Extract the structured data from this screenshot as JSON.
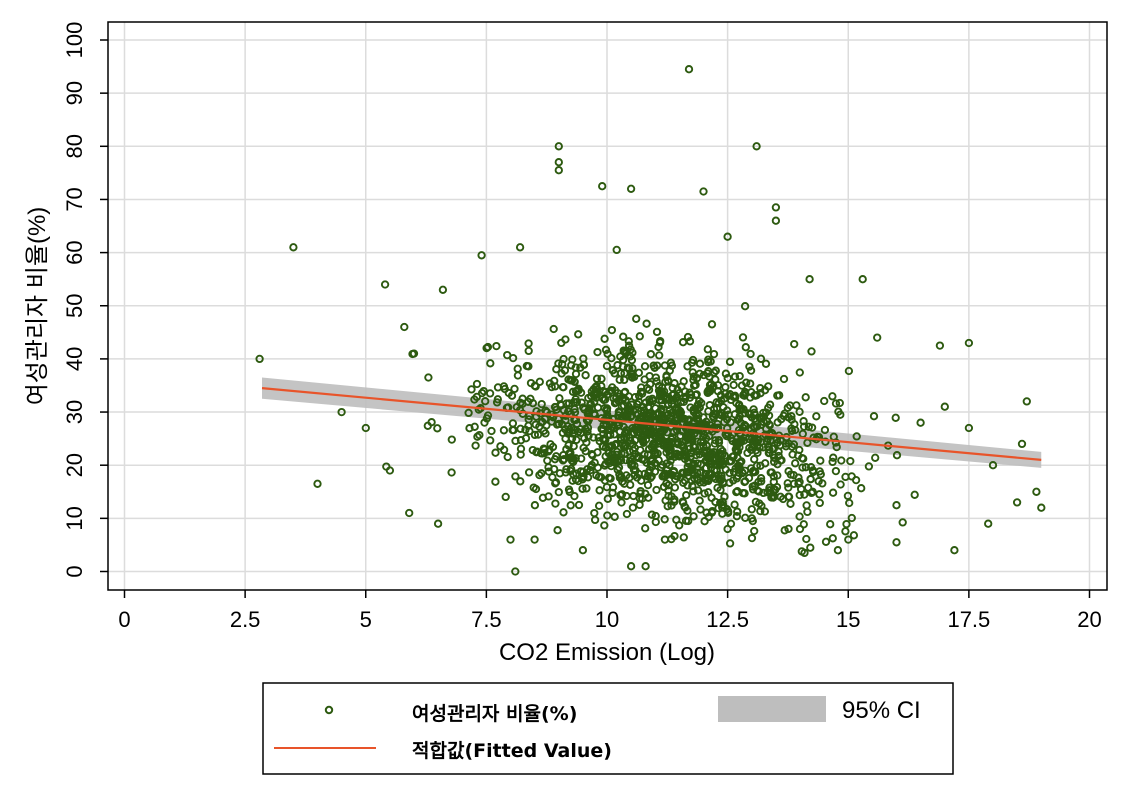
{
  "chart_data": {
    "type": "scatter",
    "xlabel": "CO2 Emission (Log)",
    "ylabel": "여성관리자 비율(%)",
    "xlim": [
      0,
      20
    ],
    "ylim": [
      0,
      100
    ],
    "x_ticks": [
      0,
      2.5,
      5,
      7.5,
      10,
      12.5,
      15,
      17.5,
      20
    ],
    "x_tick_labels": [
      "0",
      "2.5",
      "5",
      "7.5",
      "10",
      "12.5",
      "15",
      "17.5",
      "20"
    ],
    "y_ticks": [
      0,
      10,
      20,
      30,
      40,
      50,
      60,
      70,
      80,
      90,
      100
    ],
    "y_tick_labels": [
      "0",
      "10",
      "20",
      "30",
      "40",
      "50",
      "60",
      "70",
      "80",
      "90",
      "100"
    ],
    "grid": true,
    "legend_position": "bottom",
    "colors": {
      "scatter": "#2d5a10",
      "fit_line": "#e8542a",
      "ci_band": "#bebebe"
    },
    "series": [
      {
        "name": "여성관리자 비율(%)",
        "type": "scatter",
        "points": [
          [
            2.8,
            40
          ],
          [
            3.5,
            61
          ],
          [
            4.0,
            16.5
          ],
          [
            5.4,
            54
          ],
          [
            6.6,
            53
          ],
          [
            7.4,
            59.5
          ],
          [
            8.2,
            61
          ],
          [
            9.0,
            80
          ],
          [
            9.0,
            77
          ],
          [
            9.0,
            75.5
          ],
          [
            9.9,
            72.5
          ],
          [
            10.2,
            60.5
          ],
          [
            10.5,
            72
          ],
          [
            11.7,
            94.5
          ],
          [
            12.0,
            71.5
          ],
          [
            12.5,
            63
          ],
          [
            13.1,
            80
          ],
          [
            13.5,
            68.5
          ],
          [
            13.5,
            66
          ],
          [
            8.1,
            0
          ],
          [
            10.5,
            1
          ],
          [
            10.8,
            1
          ],
          [
            16.0,
            5.5
          ],
          [
            17.2,
            4
          ],
          [
            19.0,
            12
          ],
          [
            18.7,
            32
          ],
          [
            16.9,
            42.5
          ],
          [
            17.5,
            43
          ],
          [
            15.3,
            55
          ],
          [
            14.2,
            55
          ],
          [
            15.6,
            44
          ],
          [
            5.9,
            11
          ],
          [
            6.5,
            9
          ],
          [
            5.8,
            46
          ],
          [
            6.0,
            41
          ],
          [
            4.5,
            30
          ],
          [
            5.0,
            27
          ],
          [
            5.5,
            19
          ],
          [
            8.0,
            6
          ],
          [
            8.5,
            6
          ],
          [
            9.5,
            4
          ],
          [
            11.2,
            6
          ],
          [
            12.5,
            8
          ],
          [
            13.0,
            10
          ],
          [
            14.0,
            8
          ],
          [
            15.0,
            6
          ],
          [
            17.9,
            9
          ],
          [
            18.0,
            20
          ],
          [
            18.5,
            13
          ],
          [
            18.6,
            24
          ],
          [
            18.9,
            15
          ],
          [
            17.5,
            27
          ],
          [
            16.5,
            28
          ],
          [
            17.0,
            31
          ]
        ],
        "note": "approximately 1500 points densely clustered between x=7 and x=16, y=5 to y=55"
      },
      {
        "name": "적합값(Fitted Value)",
        "type": "line",
        "x": [
          2.85,
          19.0
        ],
        "y": [
          34.5,
          21.0
        ]
      },
      {
        "name": "95% CI",
        "type": "area",
        "x": [
          2.85,
          19.0
        ],
        "lower": [
          32.5,
          19.5
        ],
        "upper": [
          36.5,
          22.5
        ]
      }
    ]
  },
  "legend": {
    "scatter_label": "여성관리자 비율(%)",
    "ci_label": "95% CI",
    "fit_label": "적합값(Fitted Value)"
  }
}
